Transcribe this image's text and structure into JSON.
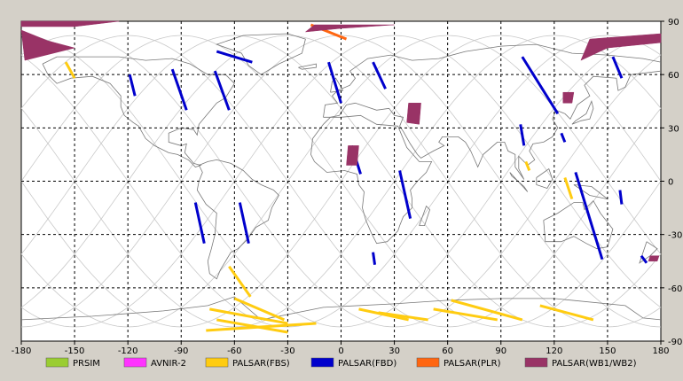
{
  "map": {
    "x_ticks": [
      "-180",
      "-150",
      "-120",
      "-90",
      "-60",
      "-30",
      "0",
      "30",
      "60",
      "90",
      "120",
      "150",
      "180"
    ],
    "y_ticks": [
      "90",
      "60",
      "30",
      "0",
      "-30",
      "-60",
      "-90"
    ],
    "xlim": [
      -180,
      180
    ],
    "ylim": [
      -90,
      90
    ]
  },
  "legend": [
    {
      "label": "PRSIM",
      "color": "#9acd32"
    },
    {
      "label": "AVNIR-2",
      "color": "#ff33ff"
    },
    {
      "label": "PALSAR(FBS)",
      "color": "#ffcc11"
    },
    {
      "label": "PALSAR(FBD)",
      "color": "#0000cc"
    },
    {
      "label": "PALSAR(PLR)",
      "color": "#ff6611"
    },
    {
      "label": "PALSAR(WB1/WB2)",
      "color": "#993366"
    }
  ],
  "chart_data": {
    "type": "scatter",
    "xlabel": "",
    "ylabel": "",
    "xlim": [
      -180,
      180
    ],
    "ylim": [
      -90,
      90
    ],
    "grid": true,
    "legend_placement": "bottom",
    "series": [
      {
        "name": "PALSAR(FBD)",
        "color": "#0000cc",
        "strips": [
          [
            [
              -70,
              73
            ],
            [
              -50,
              67
            ]
          ],
          [
            [
              -95,
              63
            ],
            [
              -87,
              40
            ]
          ],
          [
            [
              -71,
              62
            ],
            [
              -63,
              40
            ]
          ],
          [
            [
              -119,
              60
            ],
            [
              -116,
              48
            ]
          ],
          [
            [
              -82,
              -12
            ],
            [
              -77,
              -35
            ]
          ],
          [
            [
              -57,
              -12
            ],
            [
              -52,
              -35
            ]
          ],
          [
            [
              -7,
              67
            ],
            [
              0,
              44
            ]
          ],
          [
            [
              18,
              67
            ],
            [
              25,
              52
            ]
          ],
          [
            [
              6,
              20
            ],
            [
              11,
              4
            ]
          ],
          [
            [
              33,
              6
            ],
            [
              39,
              -21
            ]
          ],
          [
            [
              18,
              -40
            ],
            [
              19,
              -47
            ]
          ],
          [
            [
              102,
              70
            ],
            [
              122,
              38
            ]
          ],
          [
            [
              101,
              32
            ],
            [
              103,
              20
            ]
          ],
          [
            [
              124,
              27
            ],
            [
              126,
              22
            ]
          ],
          [
            [
              132,
              5
            ],
            [
              147,
              -44
            ]
          ],
          [
            [
              153,
              70
            ],
            [
              158,
              58
            ]
          ],
          [
            [
              157,
              -5
            ],
            [
              158,
              -13
            ]
          ],
          [
            [
              169,
              -42
            ],
            [
              172,
              -46
            ]
          ]
        ]
      },
      {
        "name": "PALSAR(FBS)",
        "color": "#ffcc11",
        "strips": [
          [
            [
              -155,
              67
            ],
            [
              -150,
              58
            ]
          ],
          [
            [
              -63,
              -48
            ],
            [
              -51,
              -65
            ]
          ],
          [
            [
              -60,
              -66
            ],
            [
              -32,
              -78
            ]
          ],
          [
            [
              -74,
              -72
            ],
            [
              -30,
              -80
            ]
          ],
          [
            [
              -70,
              -78
            ],
            [
              -30,
              -85
            ]
          ],
          [
            [
              -76,
              -84
            ],
            [
              -14,
              -80
            ]
          ],
          [
            [
              10,
              -72
            ],
            [
              38,
              -78
            ]
          ],
          [
            [
              21,
              -74
            ],
            [
              49,
              -78
            ]
          ],
          [
            [
              52,
              -72
            ],
            [
              88,
              -78
            ]
          ],
          [
            [
              62,
              -67
            ],
            [
              102,
              -78
            ]
          ],
          [
            [
              112,
              -70
            ],
            [
              142,
              -78
            ]
          ],
          [
            [
              126,
              2
            ],
            [
              130,
              -10
            ]
          ],
          [
            [
              104,
              11
            ],
            [
              106,
              6
            ]
          ]
        ]
      },
      {
        "name": "PALSAR(PLR)",
        "color": "#ff6611",
        "strips": [
          [
            [
              -17,
              88
            ],
            [
              3,
              80
            ]
          ]
        ]
      },
      {
        "name": "PALSAR(WB1/WB2)",
        "color": "#993366",
        "regions": [
          [
            [
              -180,
              90
            ],
            [
              -125,
              90
            ],
            [
              -150,
              87
            ],
            [
              -180,
              87
            ]
          ],
          [
            [
              -180,
              85
            ],
            [
              -165,
              79
            ],
            [
              -150,
              75
            ],
            [
              -170,
              70
            ],
            [
              -178,
              68
            ]
          ],
          [
            [
              -15,
              88
            ],
            [
              30,
              88
            ],
            [
              0,
              86
            ],
            [
              -20,
              84
            ]
          ],
          [
            [
              140,
              80
            ],
            [
              180,
              83
            ],
            [
              180,
              78
            ],
            [
              150,
              75
            ],
            [
              135,
              68
            ]
          ],
          [
            [
              38,
              44
            ],
            [
              45,
              44
            ],
            [
              44,
              32
            ],
            [
              37,
              33
            ]
          ],
          [
            [
              4,
              20
            ],
            [
              10,
              20
            ],
            [
              9,
              9
            ],
            [
              3,
              9
            ]
          ],
          [
            [
              125,
              50
            ],
            [
              131,
              50
            ],
            [
              130,
              44
            ],
            [
              125,
              44
            ]
          ],
          [
            [
              174,
              -42
            ],
            [
              179,
              -42
            ],
            [
              178,
              -45
            ],
            [
              173,
              -45
            ]
          ]
        ]
      }
    ]
  }
}
